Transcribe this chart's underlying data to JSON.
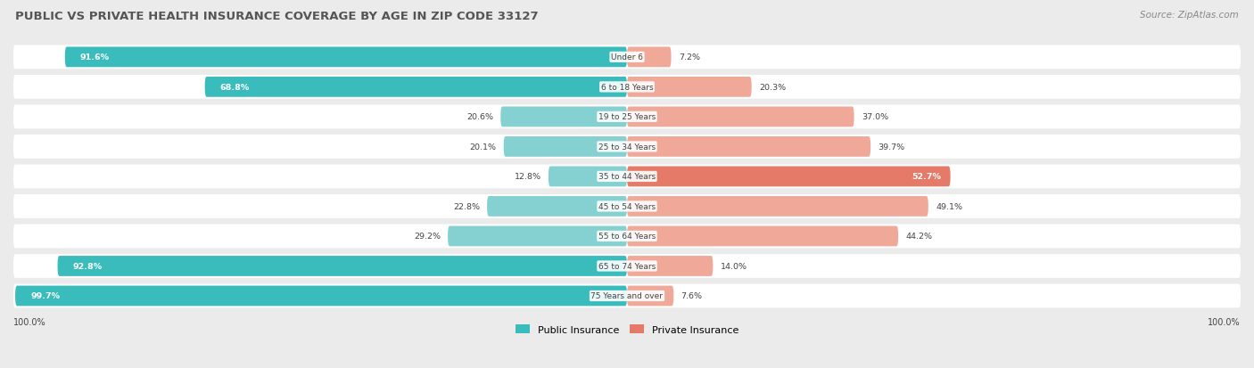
{
  "title": "PUBLIC VS PRIVATE HEALTH INSURANCE COVERAGE BY AGE IN ZIP CODE 33127",
  "source": "Source: ZipAtlas.com",
  "categories": [
    "Under 6",
    "6 to 18 Years",
    "19 to 25 Years",
    "25 to 34 Years",
    "35 to 44 Years",
    "45 to 54 Years",
    "55 to 64 Years",
    "65 to 74 Years",
    "75 Years and over"
  ],
  "public_values": [
    91.6,
    68.8,
    20.6,
    20.1,
    12.8,
    22.8,
    29.2,
    92.8,
    99.7
  ],
  "private_values": [
    7.2,
    20.3,
    37.0,
    39.7,
    52.7,
    49.1,
    44.2,
    14.0,
    7.6
  ],
  "public_color_dark": "#3BBCBC",
  "public_color_light": "#85D0D0",
  "private_color_dark": "#E57A68",
  "private_color_light": "#F0A898",
  "bg_color": "#EBEBEB",
  "row_bg_color": "#FFFFFF",
  "title_color": "#555555",
  "label_color": "#444444",
  "source_color": "#888888",
  "legend_labels": [
    "Public Insurance",
    "Private Insurance"
  ],
  "bottom_labels": [
    "100.0%",
    "100.0%"
  ]
}
